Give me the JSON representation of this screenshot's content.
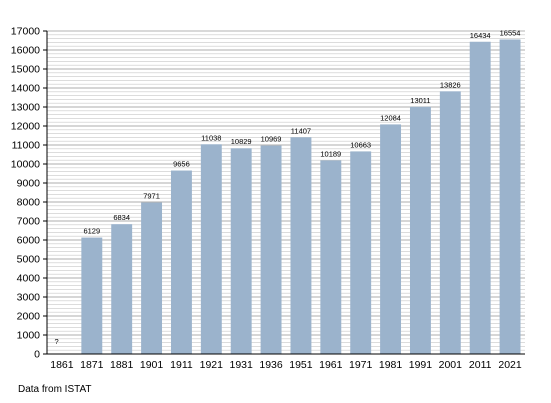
{
  "chart_data": {
    "type": "bar",
    "categories": [
      "1861",
      "1871",
      "1881",
      "1901",
      "1911",
      "1921",
      "1931",
      "1936",
      "1951",
      "1961",
      "1971",
      "1981",
      "1991",
      "2001",
      "2011",
      "2021"
    ],
    "values": [
      null,
      6129,
      6834,
      7971,
      9656,
      11038,
      10829,
      10969,
      11407,
      10189,
      10663,
      12084,
      13011,
      13826,
      16434,
      16554
    ],
    "data_labels": [
      "?",
      "6129",
      "6834",
      "7971",
      "9656",
      "11038",
      "10829",
      "10969",
      "11407",
      "10189",
      "10663",
      "12084",
      "13011",
      "13826",
      "16434",
      "16554"
    ],
    "ylim": [
      0,
      17000
    ],
    "yticks": [
      0,
      1000,
      2000,
      3000,
      4000,
      5000,
      6000,
      7000,
      8000,
      9000,
      10000,
      11000,
      12000,
      13000,
      14000,
      15000,
      16000,
      17000
    ],
    "minor_grid_step": 200,
    "grid": true,
    "bar_color": "#9bb3cc",
    "grid_color": "#c8c8c8",
    "title": "",
    "xlabel": "",
    "ylabel": ""
  },
  "footer": {
    "source_text": "Data from ISTAT"
  }
}
